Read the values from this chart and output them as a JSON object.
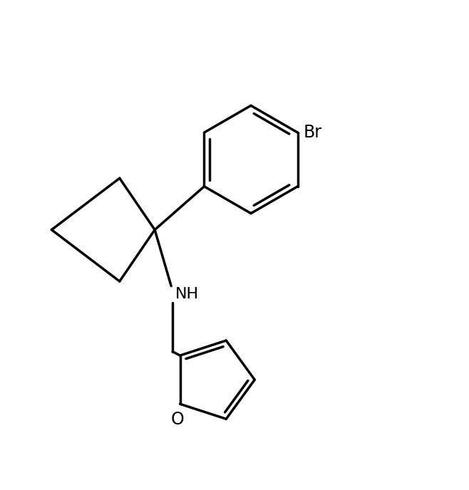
{
  "background_color": "#ffffff",
  "line_color": "#000000",
  "line_width": 2.5,
  "font_size_label": 15,
  "label_NH": "NH",
  "label_O": "O",
  "label_Br": "Br",
  "figsize": [
    6.58,
    6.88
  ],
  "dpi": 100,
  "xlim": [
    0,
    10
  ],
  "ylim": [
    0,
    10.45
  ]
}
